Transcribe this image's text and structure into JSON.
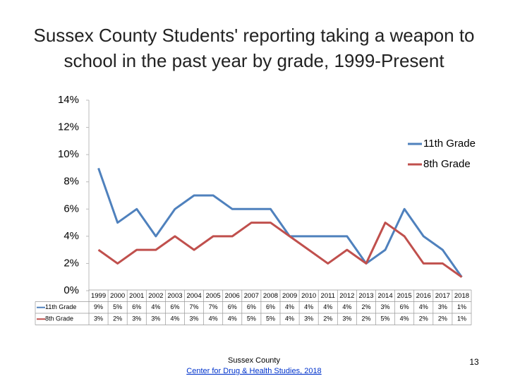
{
  "chart_data": {
    "type": "line",
    "title": "Sussex County Students' reporting taking a weapon to school in the past year by grade, 1999-Present",
    "categories": [
      "1999",
      "2000",
      "2001",
      "2002",
      "2003",
      "2004",
      "2005",
      "2006",
      "2007",
      "2008",
      "2009",
      "2010",
      "2011",
      "2012",
      "2013",
      "2014",
      "2015",
      "2016",
      "2017",
      "2018"
    ],
    "series": [
      {
        "name": "11th Grade",
        "color": "#4f81bd",
        "values": [
          9,
          5,
          6,
          4,
          6,
          7,
          7,
          6,
          6,
          6,
          4,
          4,
          4,
          4,
          2,
          3,
          6,
          4,
          3,
          1
        ],
        "value_labels": [
          "9%",
          "5%",
          "6%",
          "4%",
          "6%",
          "7%",
          "7%",
          "6%",
          "6%",
          "6%",
          "4%",
          "4%",
          "4%",
          "4%",
          "2%",
          "3%",
          "6%",
          "4%",
          "3%",
          "1%"
        ]
      },
      {
        "name": "8th Grade",
        "color": "#c0504d",
        "values": [
          3,
          2,
          3,
          3,
          4,
          3,
          4,
          4,
          5,
          5,
          4,
          3,
          2,
          3,
          2,
          5,
          4,
          2,
          2,
          1
        ],
        "value_labels": [
          "3%",
          "2%",
          "3%",
          "3%",
          "4%",
          "3%",
          "4%",
          "4%",
          "5%",
          "5%",
          "4%",
          "3%",
          "2%",
          "3%",
          "2%",
          "5%",
          "4%",
          "2%",
          "2%",
          "1%"
        ]
      }
    ],
    "ylim": [
      0,
      14
    ],
    "yticks": [
      {
        "value": 0,
        "label": "0%"
      },
      {
        "value": 2,
        "label": "2%"
      },
      {
        "value": 4,
        "label": "4%"
      },
      {
        "value": 6,
        "label": "6%"
      },
      {
        "value": 8,
        "label": "8%"
      },
      {
        "value": 10,
        "label": "10%"
      },
      {
        "value": 12,
        "label": "12%"
      },
      {
        "value": 14,
        "label": "14%"
      }
    ],
    "legend": "upper right"
  },
  "footer": {
    "source": "Sussex County",
    "link": "Center for Drug & Health Studies, 2018",
    "page": "13"
  }
}
